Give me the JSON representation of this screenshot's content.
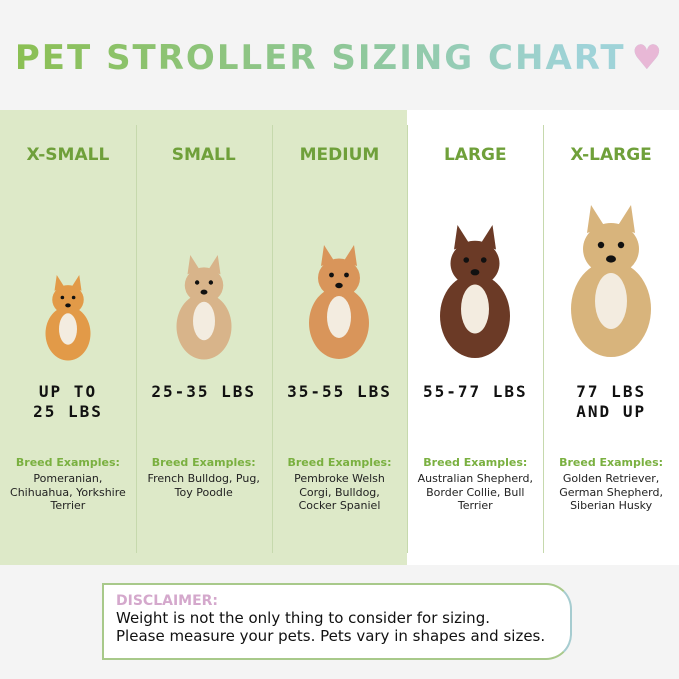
{
  "title": "PET STROLLER SIZING CHART",
  "title_icon": "heart-icon",
  "colors": {
    "green_bg": "#dde9c8",
    "accent_green": "#6fa03a",
    "heart": "#e8b8d6",
    "disclaimer_heading": "#d4a8cc"
  },
  "breed_examples_label": "Breed Examples:",
  "sizes": [
    {
      "label": "X-SMALL",
      "weight": "UP TO 25 LBS",
      "breeds": "Pomeranian, Chihuahua, Yorkshire Terrier",
      "dog": "pomeranian",
      "dog_color": "#e29a48"
    },
    {
      "label": "SMALL",
      "weight": "25-35 LBS",
      "breeds": "French Bulldog, Pug, Toy Poodle",
      "dog": "french-bulldog",
      "dog_color": "#d8b48a"
    },
    {
      "label": "MEDIUM",
      "weight": "35-55 LBS",
      "breeds": "Pembroke Welsh Corgi, Bulldog, Cocker Spaniel",
      "dog": "corgi",
      "dog_color": "#d9955a"
    },
    {
      "label": "LARGE",
      "weight": "55-77 LBS",
      "breeds": "Australian Shepherd, Border Collie, Bull Terrier",
      "dog": "australian-shepherd",
      "dog_color": "#6b3a26"
    },
    {
      "label": "X-LARGE",
      "weight": "77 LBS AND UP",
      "breeds": "Golden Retriever, German Shepherd, Siberian Husky",
      "dog": "golden-retriever",
      "dog_color": "#d8b47c"
    }
  ],
  "disclaimer": {
    "heading": "DISCLAIMER:",
    "line1": "Weight is not the only thing to consider for sizing.",
    "line2": "Please measure your pets. Pets vary in shapes and sizes."
  }
}
